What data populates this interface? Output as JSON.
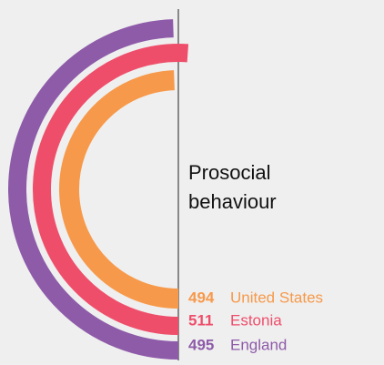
{
  "chart_data": {
    "type": "radial_bar",
    "title": "Prosocial behaviour",
    "categories": [
      "United States",
      "Estonia",
      "England"
    ],
    "values": [
      494,
      511,
      495
    ],
    "colors": [
      "#f7994a",
      "#ef4e6b",
      "#8e5ba9"
    ],
    "ylim": [
      0,
      500
    ]
  }
}
